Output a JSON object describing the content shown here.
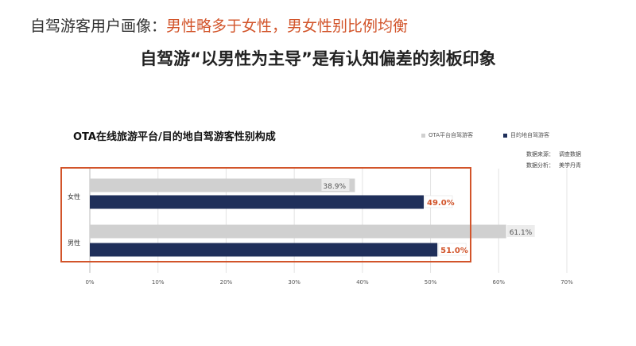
{
  "header": {
    "headline_prefix": "自驾游客用户画像：",
    "headline_emphasis": "男性略多于女性，男女性别比例均衡",
    "subheadline": "自驾游“以男性为主导”是有认知偏差的刻板印象"
  },
  "source": {
    "data_source_label": "数据来源：",
    "data_source_value": "调查数据",
    "analysis_label": "数据分析：",
    "analysis_value": "美学丹青"
  },
  "colors": {
    "series1": "#d0d0d0",
    "series2": "#1f2f5a",
    "highlight": "#d2542a",
    "headline_emphasis": "#d2542a"
  },
  "chart_data": {
    "type": "bar",
    "orientation": "horizontal",
    "title": "OTA在线旅游平台/目的地自驾游客性别构成",
    "categories": [
      "女性",
      "男性"
    ],
    "series": [
      {
        "name": "OTA平台自驾游客",
        "values": [
          38.9,
          61.1
        ]
      },
      {
        "name": "目的地自驾游客",
        "values": [
          49.0,
          51.0
        ]
      }
    ],
    "data_labels": [
      [
        "38.9%",
        "61.1%"
      ],
      [
        "49.0%",
        "51.0%"
      ]
    ],
    "xlim": [
      0,
      70
    ],
    "x_ticks": [
      "0%",
      "10%",
      "20%",
      "30%",
      "40%",
      "50%",
      "60%",
      "70%"
    ],
    "grid": true,
    "legend_position": "top-right"
  }
}
